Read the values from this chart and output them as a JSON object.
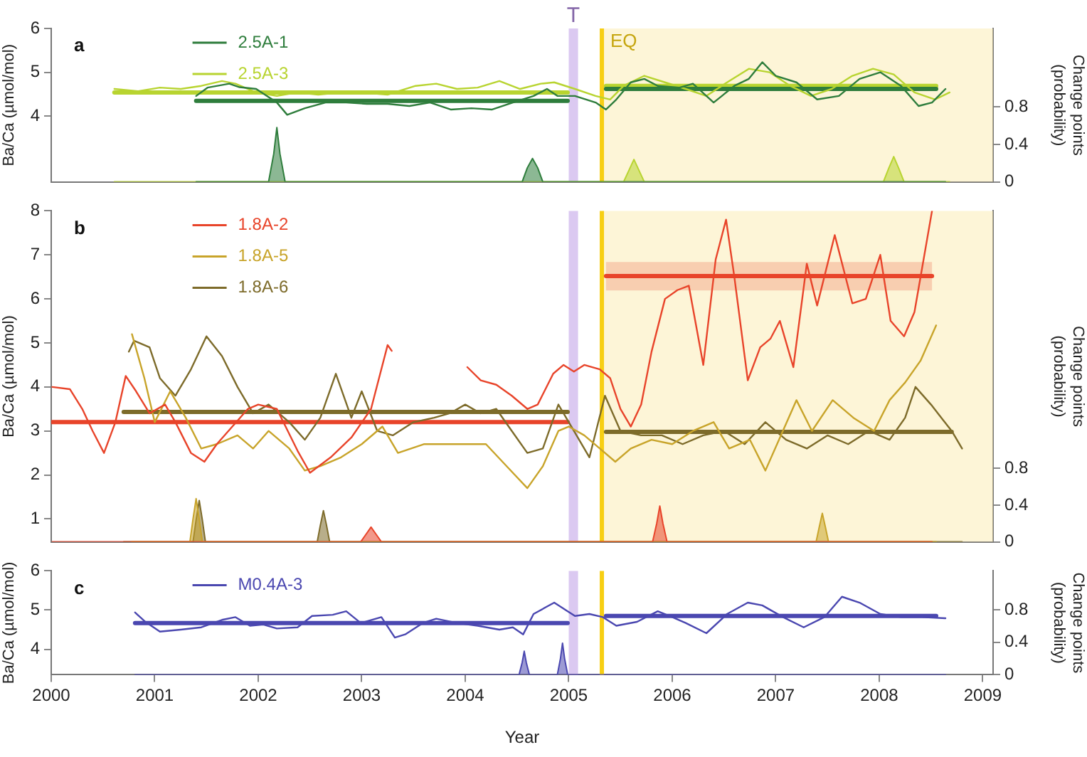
{
  "chart_data": [
    {
      "type": "line",
      "title": "a",
      "ylabel": "Ba/Ca (µmol/mol)",
      "y2label": "Change points (probability)",
      "legend": "top left",
      "tick_labels": "y",
      "grid": false,
      "xlim": [
        2000,
        2009.1
      ],
      "xticks": [
        2000,
        2001,
        2002,
        2003,
        2004,
        2005,
        2006,
        2007,
        2008,
        2009
      ],
      "ylim": [
        2.5,
        6
      ],
      "yticks": [
        4,
        5,
        6
      ],
      "y2lim": [
        0,
        1.64
      ],
      "y2ticks": [
        0,
        0.4,
        0.8
      ],
      "bands": [
        {
          "axis": "x",
          "from": 2005.0,
          "to": 2005.09,
          "label": "T",
          "color": "#b088e0"
        },
        {
          "axis": "x",
          "from": 2005.32,
          "to": 2009.1,
          "color": "#fbe9a6"
        }
      ],
      "ref_lines": [
        {
          "axis": "x",
          "value": 2005.32,
          "label": "EQ",
          "color": "#f7cf14"
        }
      ],
      "series": [
        {
          "name": "2.5A-1",
          "color": "#2e7d3c",
          "x": [
            2001.4,
            2001.51,
            2001.72,
            2001.82,
            2001.98,
            2002.18,
            2002.28,
            2002.45,
            2002.65,
            2002.85,
            2003.05,
            2003.25,
            2003.46,
            2003.66,
            2003.86,
            2004.06,
            2004.26,
            2004.46,
            2004.66,
            2004.79,
            2004.89,
            2005.06,
            2005.26,
            2005.36,
            2005.46,
            2005.6,
            2005.73,
            2005.86,
            2006.07,
            2006.2,
            2006.4,
            2006.6,
            2006.74,
            2006.87,
            2007.0,
            2007.2,
            2007.4,
            2007.61,
            2007.81,
            2008.01,
            2008.21,
            2008.38,
            2008.51,
            2008.64
          ],
          "values": [
            4.46,
            4.65,
            4.74,
            4.66,
            4.62,
            4.31,
            4.03,
            4.18,
            4.31,
            4.31,
            4.28,
            4.28,
            4.23,
            4.31,
            4.15,
            4.18,
            4.15,
            4.31,
            4.46,
            4.62,
            4.46,
            4.46,
            4.31,
            4.15,
            4.38,
            4.77,
            4.85,
            4.69,
            4.65,
            4.74,
            4.31,
            4.69,
            4.85,
            5.23,
            4.92,
            4.77,
            4.38,
            4.46,
            4.85,
            5.0,
            4.69,
            4.23,
            4.31,
            4.62
          ]
        },
        {
          "name": "2.5A-3",
          "color": "#b8d430",
          "x": [
            2000.61,
            2000.84,
            2001.05,
            2001.25,
            2001.45,
            2001.65,
            2001.78,
            2001.98,
            2002.18,
            2002.38,
            2002.58,
            2002.79,
            2002.99,
            2003.25,
            2003.52,
            2003.72,
            2003.92,
            2004.12,
            2004.33,
            2004.53,
            2004.73,
            2004.86,
            2005.06,
            2005.26,
            2005.4,
            2005.53,
            2005.73,
            2005.93,
            2006.13,
            2006.33,
            2006.53,
            2006.74,
            2006.94,
            2007.14,
            2007.34,
            2007.54,
            2007.74,
            2007.94,
            2008.14,
            2008.34,
            2008.54,
            2008.68
          ],
          "values": [
            4.62,
            4.57,
            4.65,
            4.62,
            4.69,
            4.8,
            4.74,
            4.54,
            4.46,
            4.54,
            4.49,
            4.54,
            4.54,
            4.49,
            4.69,
            4.74,
            4.62,
            4.65,
            4.8,
            4.62,
            4.74,
            4.77,
            4.62,
            4.46,
            4.38,
            4.69,
            4.92,
            4.77,
            4.62,
            4.46,
            4.77,
            5.08,
            5.0,
            4.69,
            4.46,
            4.62,
            4.92,
            5.08,
            4.95,
            4.54,
            4.38,
            4.54
          ]
        },
        {
          "type": "line",
          "color": "#2e7d3c",
          "x": [
            2001.4,
            2004.99
          ],
          "values": [
            4.35,
            4.35
          ]
        },
        {
          "type": "line",
          "color": "#2e7d3c",
          "x": [
            2005.36,
            2008.55
          ],
          "values": [
            4.62,
            4.62
          ]
        },
        {
          "type": "line",
          "color": "#b8d430",
          "x": [
            2000.61,
            2004.99
          ],
          "values": [
            4.54,
            4.54
          ]
        },
        {
          "type": "line",
          "color": "#b8d430",
          "x": [
            2005.36,
            2008.55
          ],
          "values": [
            4.69,
            4.69
          ]
        },
        {
          "type": "area",
          "axis": "y2",
          "color": "#2e7d3c",
          "x": [
            2001.4,
            2002.1,
            2002.15,
            2002.18,
            2002.21,
            2002.26,
            2004.55,
            2004.6,
            2004.65,
            2004.7,
            2004.75,
            2008.64
          ],
          "values": [
            0,
            0,
            0.3,
            0.58,
            0.3,
            0,
            0,
            0.15,
            0.25,
            0.15,
            0,
            0
          ]
        },
        {
          "type": "area",
          "axis": "y2",
          "color": "#b8d430",
          "x": [
            2000.61,
            2005.53,
            2005.58,
            2005.63,
            2005.68,
            2005.73,
            2008.04,
            2008.09,
            2008.14,
            2008.19,
            2008.24,
            2008.68
          ],
          "values": [
            0,
            0,
            0.12,
            0.24,
            0.12,
            0,
            0,
            0.14,
            0.27,
            0.14,
            0,
            0
          ]
        }
      ]
    },
    {
      "type": "line",
      "title": "b",
      "ylabel": "Ba/Ca (µmol/mol)",
      "y2label": "Change points (probability)",
      "legend": "top left",
      "tick_labels": "y",
      "grid": false,
      "xlim": [
        2000,
        2009.1
      ],
      "xticks": [
        2000,
        2001,
        2002,
        2003,
        2004,
        2005,
        2006,
        2007,
        2008,
        2009
      ],
      "ylim": [
        0.48,
        8
      ],
      "yticks": [
        1,
        2,
        3,
        4,
        5,
        6,
        7,
        8
      ],
      "y2lim": [
        0,
        3.6
      ],
      "y2ticks": [
        0,
        0.4,
        0.8
      ],
      "bands": [
        {
          "axis": "x",
          "from": 2005.0,
          "to": 2005.09,
          "color": "#b088e0"
        },
        {
          "axis": "x",
          "from": 2005.32,
          "to": 2009.1,
          "color": "#fbe9a6"
        }
      ],
      "ref_lines": [
        {
          "axis": "x",
          "value": 2005.32,
          "color": "#f7cf14"
        }
      ],
      "series": [
        {
          "name": "1.8A-2",
          "color": "#e8442a",
          "x": [
            2000.01,
            2000.18,
            2000.3,
            2000.4,
            2000.51,
            2000.62,
            2000.72,
            2000.82,
            2000.95,
            2001.1,
            2001.2,
            2001.35,
            2001.48,
            2001.6,
            2001.75,
            2001.9,
            2002.0,
            2002.18,
            2002.38,
            2002.5,
            2002.7,
            2002.9,
            2003.09,
            2003.25,
            2003.29,
            2003.6,
            2004.02,
            2004.15,
            2004.3,
            2004.45,
            2004.6,
            2004.7,
            2004.85,
            2004.95,
            2005.05,
            2005.15,
            2005.3,
            2005.4,
            2005.5,
            2005.6,
            2005.7,
            2005.8,
            2005.93,
            2006.05,
            2006.16,
            2006.3,
            2006.42,
            2006.52,
            2006.6,
            2006.73,
            2006.85,
            2006.95,
            2007.04,
            2007.17,
            2007.3,
            2007.4,
            2007.57,
            2007.74,
            2007.87,
            2008.01,
            2008.11,
            2008.24,
            2008.34,
            2008.51
          ],
          "values": [
            4.0,
            3.95,
            3.5,
            3.0,
            2.5,
            3.2,
            4.25,
            3.9,
            3.4,
            3.6,
            3.2,
            2.5,
            2.3,
            2.7,
            3.1,
            3.5,
            3.6,
            3.5,
            2.55,
            2.05,
            2.4,
            2.85,
            3.5,
            4.95,
            4.82,
            null,
            4.45,
            4.15,
            4.05,
            3.8,
            3.5,
            3.6,
            4.3,
            4.5,
            4.35,
            4.5,
            4.4,
            4.2,
            3.5,
            3.1,
            3.6,
            4.8,
            6.0,
            6.2,
            6.3,
            4.5,
            6.9,
            7.8,
            6.5,
            4.15,
            4.9,
            5.1,
            5.5,
            4.45,
            6.8,
            5.85,
            7.45,
            5.9,
            6.0,
            7.0,
            5.5,
            5.15,
            5.7,
            8.0
          ]
        },
        {
          "name": "1.8A-5",
          "color": "#c8a42a",
          "x": [
            2000.78,
            2000.9,
            2001.0,
            2001.15,
            2001.3,
            2001.45,
            2001.6,
            2001.8,
            2001.95,
            2002.1,
            2002.3,
            2002.45,
            2002.6,
            2002.8,
            2003.0,
            2003.2,
            2003.35,
            2003.6,
            2003.9,
            2004.2,
            2004.4,
            2004.6,
            2004.75,
            2004.9,
            2005.0,
            2005.15,
            2005.3,
            2005.45,
            2005.6,
            2005.8,
            2006.0,
            2006.2,
            2006.4,
            2006.55,
            2006.75,
            2006.9,
            2007.05,
            2007.2,
            2007.35,
            2007.55,
            2007.75,
            2007.95,
            2008.1,
            2008.25,
            2008.4,
            2008.55
          ],
          "values": [
            5.2,
            4.2,
            3.2,
            3.9,
            3.3,
            2.6,
            2.7,
            2.9,
            2.6,
            3.0,
            2.6,
            2.1,
            2.2,
            2.4,
            2.7,
            3.1,
            2.5,
            2.7,
            2.7,
            2.7,
            2.2,
            1.7,
            2.2,
            3.0,
            3.1,
            2.9,
            2.6,
            2.3,
            2.6,
            2.8,
            2.7,
            3.0,
            3.2,
            2.6,
            2.8,
            2.1,
            2.9,
            3.7,
            3.0,
            3.7,
            3.3,
            3.0,
            3.7,
            4.1,
            4.6,
            5.4
          ]
        },
        {
          "name": "1.8A-6",
          "color": "#7d6b2a",
          "x": [
            2000.75,
            2000.8,
            2000.95,
            2001.05,
            2001.2,
            2001.35,
            2001.5,
            2001.65,
            2001.8,
            2001.95,
            2002.1,
            2002.3,
            2002.45,
            2002.6,
            2002.75,
            2002.9,
            2003.0,
            2003.15,
            2003.3,
            2003.5,
            2003.7,
            2003.85,
            2004.0,
            2004.15,
            2004.3,
            2004.45,
            2004.6,
            2004.75,
            2004.9,
            2005.05,
            2005.2,
            2005.35,
            2005.5,
            2005.7,
            2005.9,
            2006.1,
            2006.3,
            2006.5,
            2006.7,
            2006.9,
            2007.1,
            2007.3,
            2007.5,
            2007.7,
            2007.9,
            2008.1,
            2008.25,
            2008.35,
            2008.5,
            2008.6,
            2008.7,
            2008.8
          ],
          "values": [
            4.8,
            5.05,
            4.9,
            4.2,
            3.8,
            4.4,
            5.15,
            4.7,
            4.0,
            3.4,
            3.6,
            3.2,
            2.8,
            3.3,
            4.3,
            3.3,
            3.9,
            3.0,
            2.9,
            3.2,
            3.3,
            3.4,
            3.6,
            3.4,
            3.5,
            3.0,
            2.5,
            2.6,
            3.6,
            3.0,
            2.4,
            3.8,
            3.0,
            2.9,
            2.9,
            2.7,
            2.9,
            3.0,
            2.7,
            3.2,
            2.8,
            2.6,
            2.9,
            2.7,
            3.0,
            2.8,
            3.3,
            4.0,
            3.6,
            3.3,
            3.0,
            2.6
          ]
        },
        {
          "type": "line",
          "color": "#e8442a",
          "x": [
            2000.01,
            2004.99
          ],
          "values": [
            3.2,
            3.2
          ]
        },
        {
          "type": "line",
          "color": "#e8442a",
          "x": [
            2005.36,
            2008.51
          ],
          "values": [
            6.52,
            6.52
          ],
          "lower": [
            6.19,
            6.19
          ],
          "upper": [
            6.84,
            6.84
          ]
        },
        {
          "type": "line",
          "color": "#7d6b2a",
          "x": [
            2000.7,
            2004.99
          ],
          "values": [
            3.43,
            3.43
          ]
        },
        {
          "type": "line",
          "color": "#7d6b2a",
          "x": [
            2005.36,
            2008.7
          ],
          "values": [
            2.98,
            2.98
          ]
        },
        {
          "type": "area",
          "axis": "y2",
          "color": "#e8442a",
          "x": [
            2000.01,
            2002.99,
            2003.04,
            2003.09,
            2003.14,
            2003.19,
            2005.81,
            2005.85,
            2005.88,
            2005.91,
            2005.95,
            2008.51
          ],
          "values": [
            0,
            0,
            0.08,
            0.16,
            0.08,
            0,
            0,
            0.2,
            0.39,
            0.2,
            0,
            0
          ]
        },
        {
          "type": "area",
          "axis": "y2",
          "color": "#c8a42a",
          "x": [
            2000.78,
            2001.34,
            2001.37,
            2001.4,
            2001.43,
            2001.46,
            2007.39,
            2007.42,
            2007.45,
            2007.48,
            2007.51,
            2008.55
          ],
          "values": [
            0,
            0,
            0.25,
            0.47,
            0.25,
            0,
            0,
            0.16,
            0.31,
            0.16,
            0,
            0
          ]
        },
        {
          "type": "area",
          "axis": "y2",
          "color": "#7d6b2a",
          "x": [
            2000.7,
            2001.37,
            2001.4,
            2001.43,
            2001.46,
            2001.49,
            2002.57,
            2002.6,
            2002.63,
            2002.66,
            2002.69,
            2008.8
          ],
          "values": [
            0,
            0,
            0.24,
            0.45,
            0.24,
            0,
            0,
            0.18,
            0.34,
            0.18,
            0,
            0
          ]
        }
      ]
    },
    {
      "type": "line",
      "title": "c",
      "xlabel": "Year",
      "ylabel": "Ba/Ca (µmol/mol)",
      "y2label": "Change points (probability)",
      "legend": "top left",
      "grid": false,
      "xlim": [
        2000,
        2009.1
      ],
      "xticks": [
        2000,
        2001,
        2002,
        2003,
        2004,
        2005,
        2006,
        2007,
        2008,
        2009
      ],
      "ylim": [
        3.35,
        6
      ],
      "yticks": [
        4,
        5,
        6
      ],
      "y2lim": [
        0,
        1.28
      ],
      "y2ticks": [
        0,
        0.4,
        0.8
      ],
      "bands": [
        {
          "axis": "x",
          "from": 2005.0,
          "to": 2005.09,
          "color": "#b088e0"
        }
      ],
      "ref_lines": [
        {
          "axis": "x",
          "value": 2005.32,
          "color": "#f7cf14"
        }
      ],
      "series": [
        {
          "name": "M0.4A-3",
          "color": "#4a47b0",
          "x": [
            2000.81,
            2000.91,
            2001.05,
            2001.25,
            2001.45,
            2001.65,
            2001.78,
            2001.92,
            2002.05,
            2002.18,
            2002.38,
            2002.52,
            2002.72,
            2002.85,
            2002.99,
            2003.19,
            2003.32,
            2003.42,
            2003.59,
            2003.72,
            2003.92,
            2004.12,
            2004.33,
            2004.46,
            2004.56,
            2004.66,
            2004.79,
            2004.86,
            2004.99,
            2005.06,
            2005.2,
            2005.33,
            2005.46,
            2005.66,
            2005.86,
            2006.0,
            2006.13,
            2006.33,
            2006.53,
            2006.73,
            2006.87,
            2007.07,
            2007.27,
            2007.47,
            2007.64,
            2007.81,
            2008.01,
            2008.21,
            2008.41,
            2008.64
          ],
          "values": [
            4.94,
            4.7,
            4.45,
            4.5,
            4.56,
            4.75,
            4.82,
            4.6,
            4.63,
            4.53,
            4.56,
            4.85,
            4.88,
            4.97,
            4.67,
            4.82,
            4.3,
            4.38,
            4.67,
            4.78,
            4.67,
            4.6,
            4.5,
            4.56,
            4.38,
            4.9,
            5.09,
            5.19,
            4.97,
            4.85,
            4.9,
            4.82,
            4.6,
            4.7,
            4.97,
            4.82,
            4.67,
            4.41,
            4.9,
            5.19,
            5.12,
            4.82,
            4.56,
            4.82,
            5.34,
            5.19,
            4.9,
            4.82,
            4.82,
            4.79
          ]
        },
        {
          "type": "line",
          "color": "#4a47b0",
          "x": [
            2000.81,
            2004.99
          ],
          "values": [
            4.67,
            4.67
          ]
        },
        {
          "type": "line",
          "color": "#4a47b0",
          "x": [
            2005.36,
            2008.55
          ],
          "values": [
            4.85,
            4.85
          ]
        },
        {
          "type": "area",
          "axis": "y2",
          "color": "#4a47b0",
          "x": [
            2000.81,
            2004.52,
            2004.55,
            2004.57,
            2004.59,
            2004.62,
            2004.89,
            2004.92,
            2004.94,
            2004.96,
            2004.99,
            2008.64
          ],
          "values": [
            0,
            0,
            0.15,
            0.29,
            0.15,
            0,
            0,
            0.2,
            0.39,
            0.2,
            0,
            0
          ]
        }
      ]
    }
  ]
}
